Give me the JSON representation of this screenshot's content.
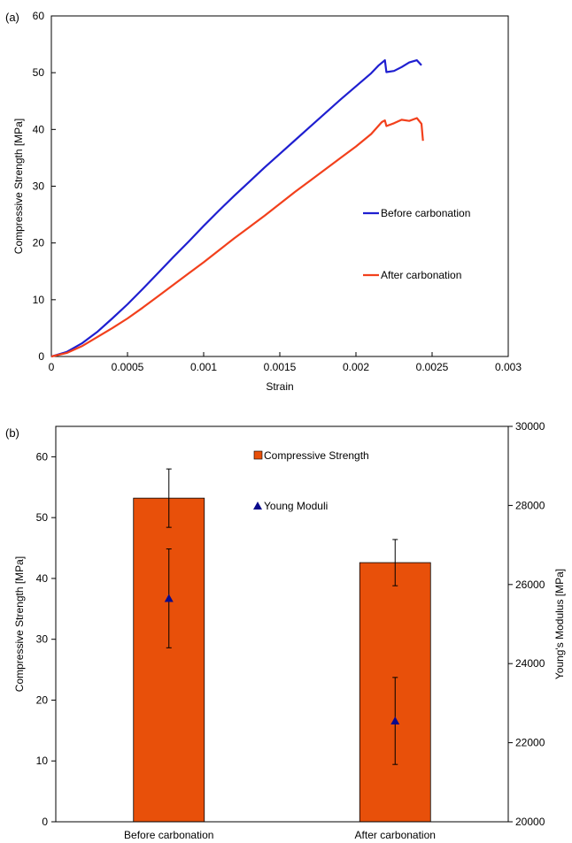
{
  "chart_data": [
    {
      "panel_label": "(a)",
      "type": "line",
      "xlabel": "Strain",
      "ylabel": "Compressive Strength [MPa]",
      "xlim": [
        0,
        0.003
      ],
      "ylim": [
        0,
        60
      ],
      "xticks": [
        "0",
        "0.0005",
        "0.001",
        "0.0015",
        "0.002",
        "0.0025",
        "0.003"
      ],
      "yticks": [
        "0",
        "10",
        "20",
        "30",
        "40",
        "50",
        "60"
      ],
      "grid": false,
      "legend_placement": "right",
      "series": [
        {
          "name": "Before carbonation",
          "color": "#1f1fd0",
          "x": [
            0,
            0.0001,
            0.0002,
            0.0003,
            0.0004,
            0.0005,
            0.0006,
            0.0007,
            0.0008,
            0.0009,
            0.001,
            0.0011,
            0.0012,
            0.0013,
            0.0014,
            0.0015,
            0.0016,
            0.0017,
            0.0018,
            0.0019,
            0.002,
            0.0021,
            0.00215,
            0.00219,
            0.0022,
            0.00225,
            0.0023,
            0.00235,
            0.0024,
            0.00243
          ],
          "y": [
            0,
            0.8,
            2.3,
            4.3,
            6.7,
            9.2,
            11.9,
            14.7,
            17.5,
            20.2,
            23.0,
            25.7,
            28.3,
            30.8,
            33.3,
            35.7,
            38.1,
            40.5,
            42.9,
            45.3,
            47.6,
            49.9,
            51.3,
            52.2,
            50.1,
            50.3,
            51.0,
            51.8,
            52.2,
            51.3
          ]
        },
        {
          "name": "After carbonation",
          "color": "#f2401c",
          "x": [
            0,
            0.0001,
            0.0002,
            0.0003,
            0.0004,
            0.0005,
            0.0006,
            0.0007,
            0.0008,
            0.0009,
            0.001,
            0.0011,
            0.0012,
            0.0013,
            0.0014,
            0.0015,
            0.0016,
            0.0017,
            0.0018,
            0.0019,
            0.002,
            0.0021,
            0.00217,
            0.00219,
            0.0022,
            0.00225,
            0.0023,
            0.00235,
            0.0024,
            0.00243,
            0.00244
          ],
          "y": [
            0,
            0.6,
            1.8,
            3.4,
            5.0,
            6.7,
            8.6,
            10.6,
            12.6,
            14.6,
            16.6,
            18.7,
            20.8,
            22.8,
            24.8,
            26.9,
            29.0,
            31.0,
            33.0,
            35.0,
            37.0,
            39.2,
            41.3,
            41.6,
            40.6,
            41.1,
            41.7,
            41.5,
            42.0,
            41.0,
            38.0
          ]
        }
      ]
    },
    {
      "panel_label": "(b)",
      "type": "bar",
      "categories": [
        "Before carbonation",
        "After carbonation"
      ],
      "ylabel": "Compressive Strength [MPa]",
      "y2label": "Young's Modulus [MPa]",
      "ylim": [
        0,
        65
      ],
      "y2lim": [
        20000,
        30000
      ],
      "yticks": [
        "0",
        "10",
        "20",
        "30",
        "40",
        "50",
        "60"
      ],
      "y2ticks": [
        "20000",
        "22000",
        "24000",
        "26000",
        "28000",
        "30000"
      ],
      "grid": false,
      "legend_placement": "top-center",
      "series": [
        {
          "name": "Compressive Strength",
          "color": "#e8500a",
          "axis": "left",
          "values": [
            53.2,
            42.6
          ],
          "error": [
            4.8,
            3.8
          ]
        },
        {
          "name": "Young Moduli",
          "color": "#0a0a8c",
          "axis": "right",
          "marker": "triangle",
          "values": [
            25650,
            22550
          ],
          "error": [
            1250,
            1100
          ]
        }
      ]
    }
  ]
}
